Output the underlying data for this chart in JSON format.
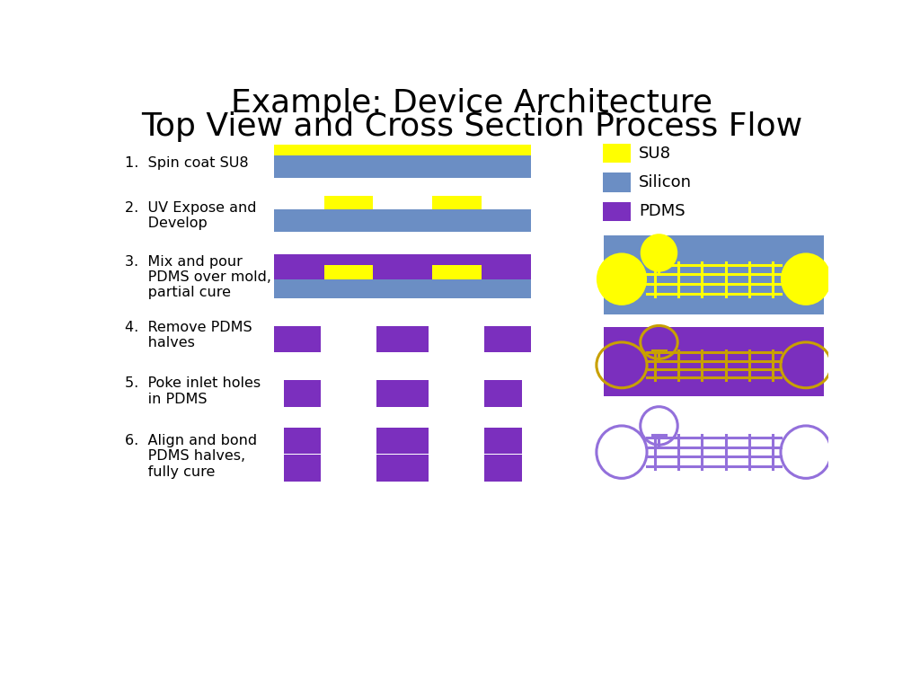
{
  "title_line1": "Example: Device Architecture",
  "title_line2": "Top View and Cross Section Process Flow",
  "title_fontsize": 26,
  "background_color": "#ffffff",
  "su8_color": "#ffff00",
  "silicon_color": "#6b8ec4",
  "pdms_color": "#7b2fbe",
  "white_color": "#ffffff",
  "legend_items": [
    "SU8",
    "Silicon",
    "PDMS"
  ],
  "legend_colors": [
    "#ffff00",
    "#6b8ec4",
    "#7b2fbe"
  ],
  "top_view_outline_colors": [
    "#ffff00",
    "#c8a000",
    "#9370DB"
  ]
}
